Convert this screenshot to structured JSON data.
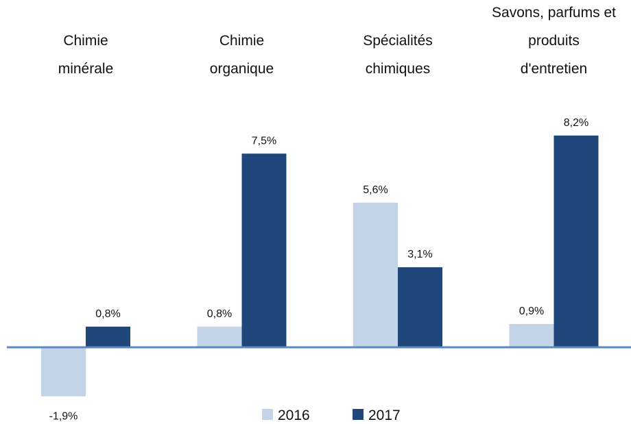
{
  "chart_data": {
    "type": "bar",
    "categories": [
      "Chimie\nminérale",
      "Chimie\norganique",
      "Spécialités\nchimiques",
      "Savons, parfums et\nproduits\nd'entretien"
    ],
    "series": [
      {
        "name": "2016",
        "color": "#c3d4e9",
        "values": [
          -1.9,
          0.8,
          5.6,
          0.9
        ],
        "value_labels": [
          "-1,9%",
          "0,8%",
          "5,6%",
          "0,9%"
        ]
      },
      {
        "name": "2017",
        "color": "#1f477b",
        "values": [
          0.8,
          7.5,
          3.1,
          8.2
        ],
        "value_labels": [
          "0,8%",
          "7,5%",
          "3,1%",
          "8,2%"
        ]
      }
    ]
  }
}
